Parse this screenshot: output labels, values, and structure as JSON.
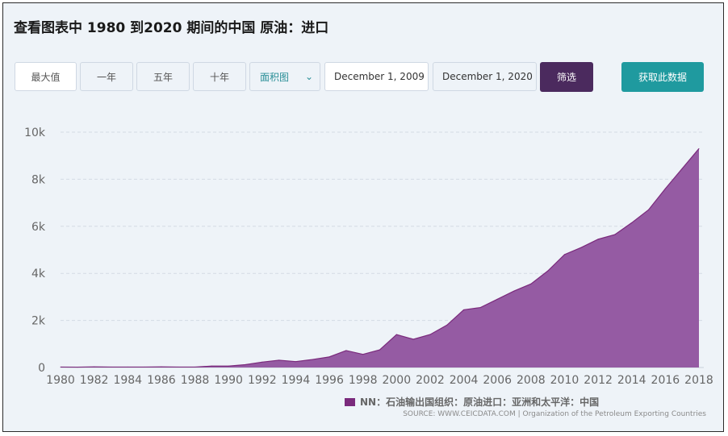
{
  "title": "查看图表中 1980 到2020 期间的中国 原油：进口",
  "toolbar": {
    "max_label": "最大值",
    "one_year_label": "一年",
    "five_year_label": "五年",
    "ten_year_label": "十年",
    "chart_type_value": "面积图",
    "start_date": "December 1, 2009",
    "end_date": "December 1, 2020",
    "filter_label": "筛选",
    "get_data_label": "获取此数据"
  },
  "legend": {
    "label": "NN：石油输出国组织：原油进口：亚洲和太平洋：中国"
  },
  "source": "SOURCE: WWW.CEICDATA.COM | Organization of the Petroleum Exporting Countries",
  "colors": {
    "area_fill": "#955ba3",
    "area_stroke": "#7a2a7c",
    "filter_button": "#4b2a5e",
    "get_data_button": "#1f9a9f"
  },
  "chart_data": {
    "type": "area",
    "x": [
      1980,
      1981,
      1982,
      1983,
      1984,
      1985,
      1986,
      1987,
      1988,
      1989,
      1990,
      1991,
      1992,
      1993,
      1994,
      1995,
      1996,
      1997,
      1998,
      1999,
      2000,
      2001,
      2002,
      2003,
      2004,
      2005,
      2006,
      2007,
      2008,
      2009,
      2010,
      2011,
      2012,
      2013,
      2014,
      2015,
      2016,
      2017,
      2018
    ],
    "series": [
      {
        "name": "NN：石油输出国组织：原油进口：亚洲和太平洋：中国",
        "values": [
          20,
          15,
          25,
          20,
          20,
          20,
          25,
          20,
          20,
          60,
          60,
          120,
          230,
          310,
          250,
          340,
          450,
          720,
          560,
          750,
          1400,
          1200,
          1400,
          1800,
          2450,
          2550,
          2900,
          3250,
          3550,
          4100,
          4800,
          5100,
          5450,
          5650,
          6150,
          6700,
          7600,
          8450,
          9300
        ]
      }
    ],
    "x_ticks": [
      "1980",
      "1982",
      "1984",
      "1986",
      "1988",
      "1990",
      "1992",
      "1994",
      "1996",
      "1998",
      "2000",
      "2002",
      "2004",
      "2006",
      "2008",
      "2010",
      "2012",
      "2014",
      "2016",
      "2018"
    ],
    "y_ticks": [
      "0",
      "2k",
      "4k",
      "6k",
      "8k",
      "10k"
    ],
    "y_tick_values": [
      0,
      2000,
      4000,
      6000,
      8000,
      10000
    ],
    "xlim": [
      1980,
      2018
    ],
    "ylim": [
      0,
      10000
    ],
    "grid": "horizontal dashed",
    "legend_position": "bottom-right"
  }
}
